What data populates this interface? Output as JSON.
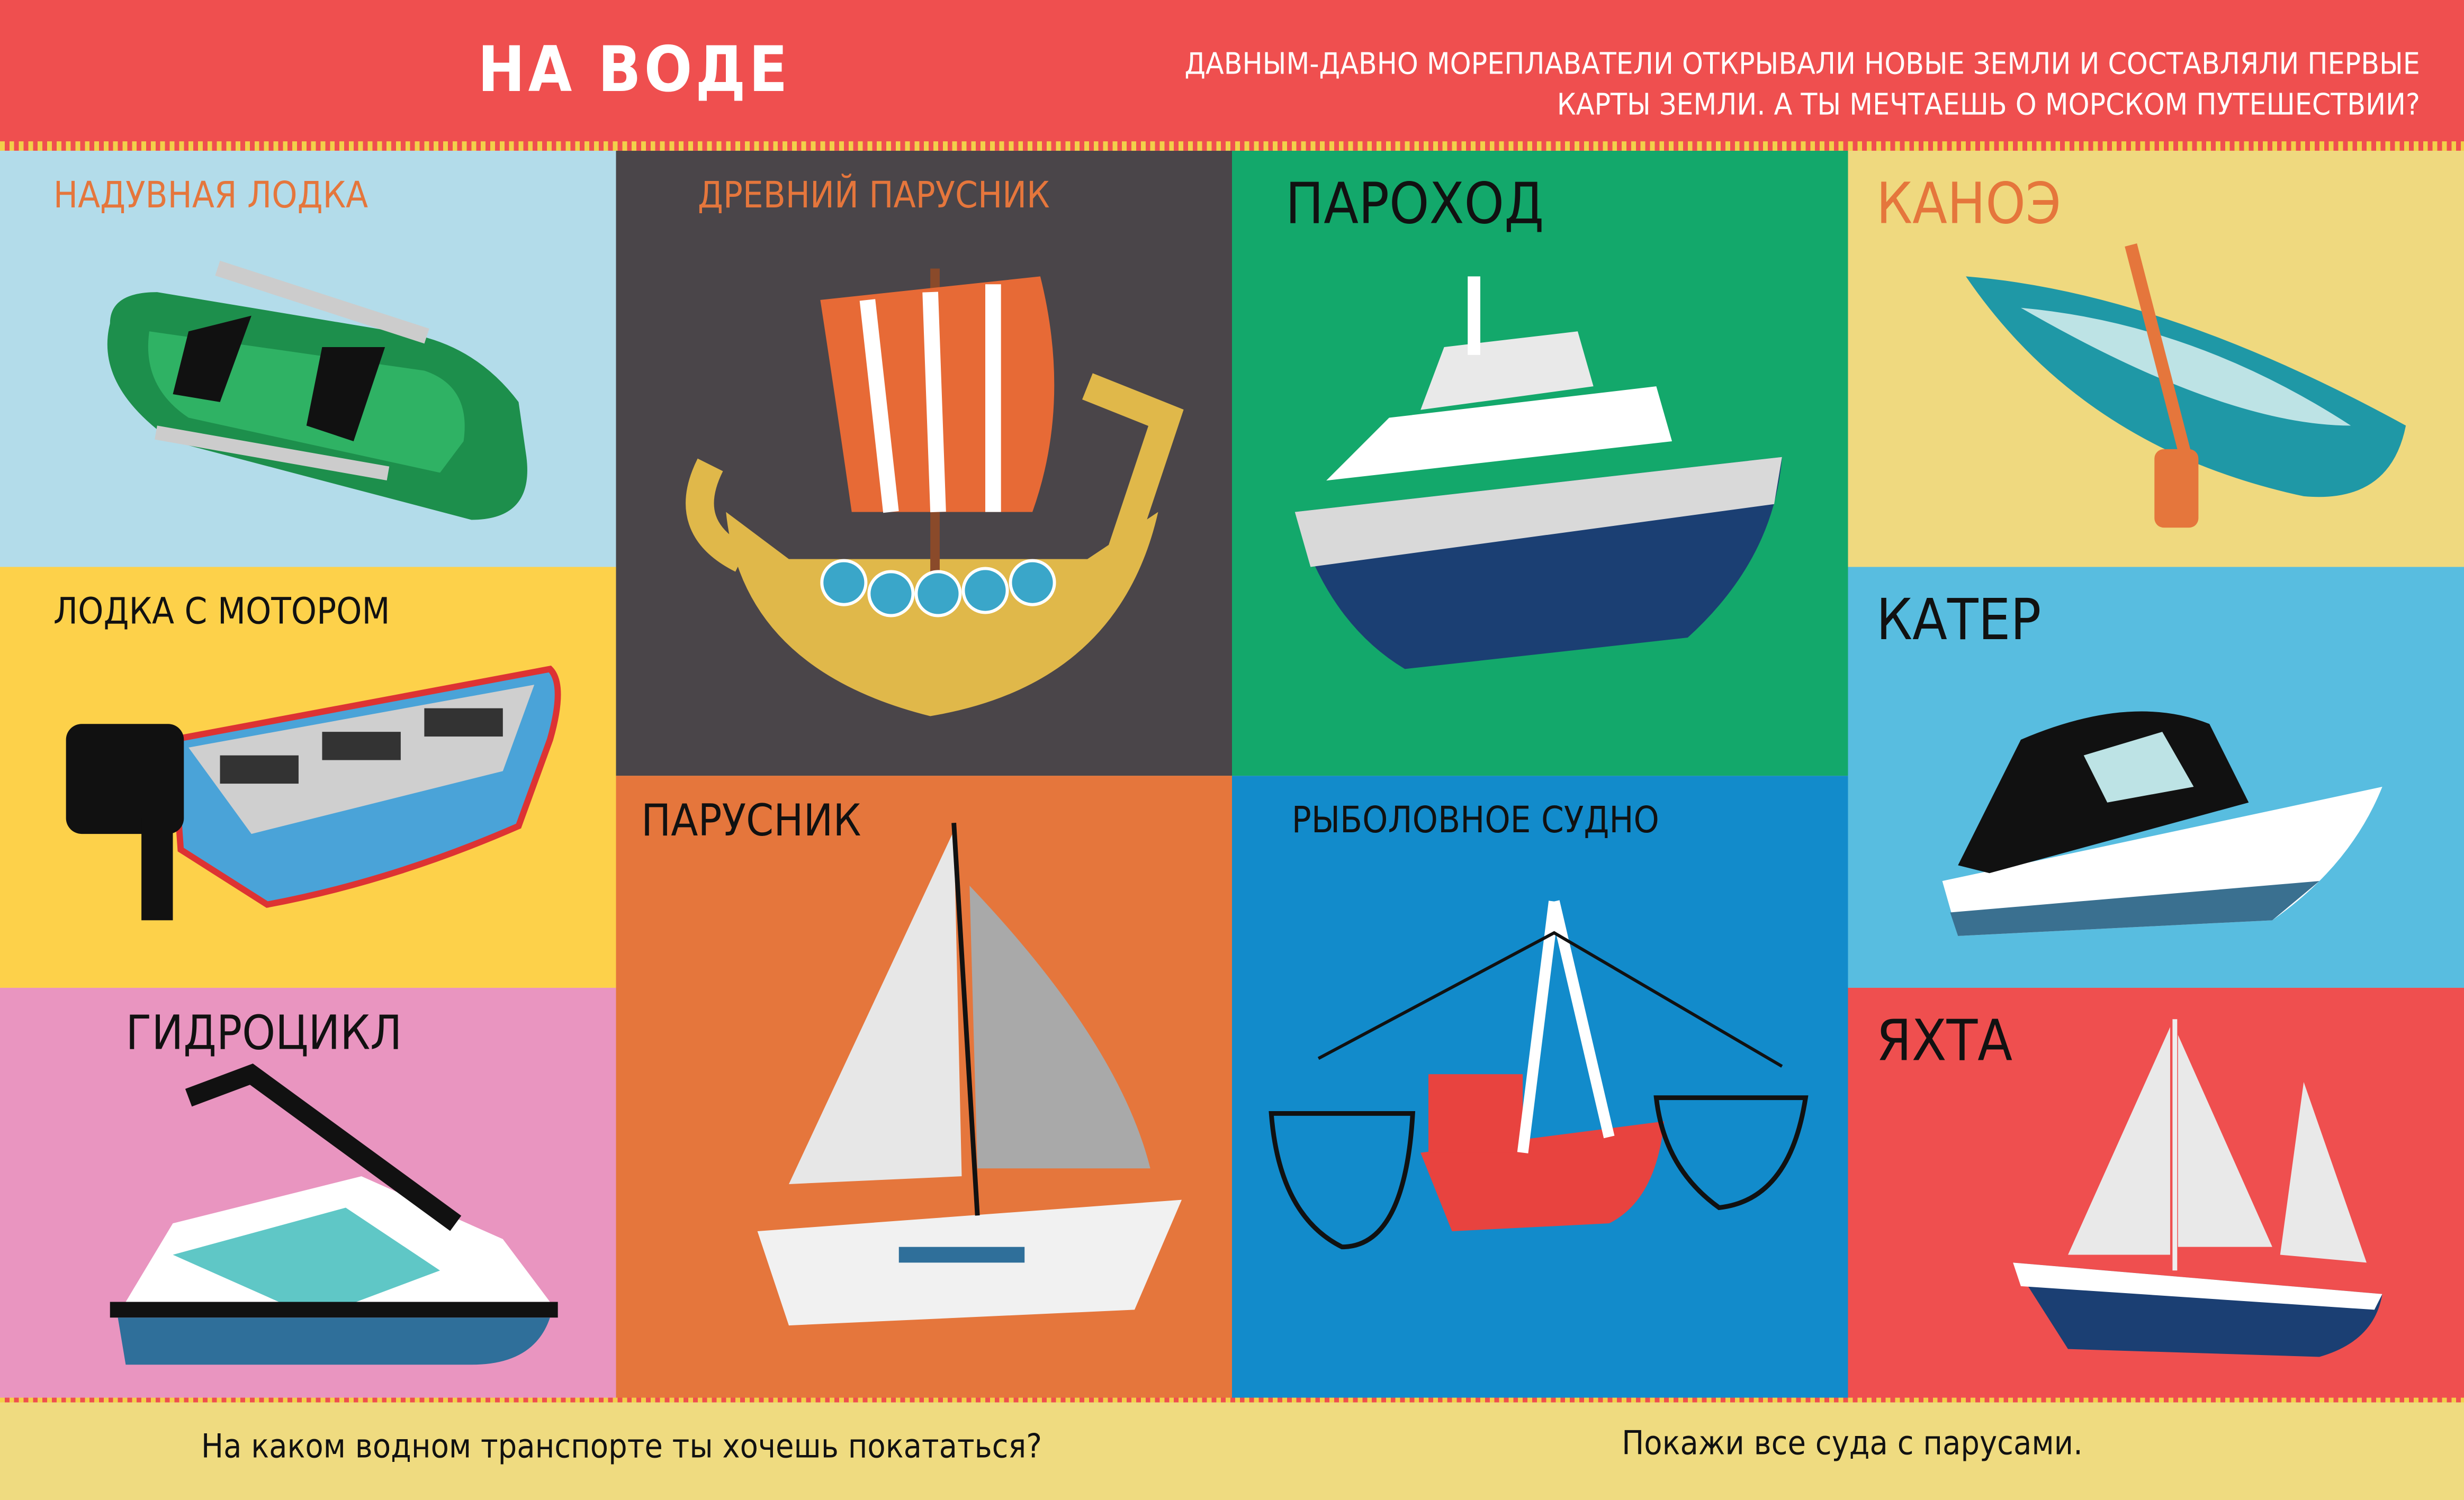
{
  "header": {
    "title": "НА ВОДЕ",
    "intro": "ДАВНЫМ-ДАВНО МОРЕПЛАВАТЕЛИ ОТКРЫВАЛИ НОВЫЕ ЗЕМЛИ И СОСТАВЛЯЛИ ПЕРВЫЕ КАРТЫ ЗЕМЛИ. А ТЫ МЕЧТАЕШЬ О МОРСКОМ ПУТЕШЕСТВИИ?",
    "color": "#ef4f4f"
  },
  "tiles": [
    {
      "label": "НАДУВНАЯ ЛОДКА",
      "bg": "#b3dcea",
      "icon": "inflatable-boat"
    },
    {
      "label": "ЛОДКА С МОТОРОМ",
      "bg": "#fdd14a",
      "icon": "motor-boat"
    },
    {
      "label": "ГИДРОЦИКЛ",
      "bg": "#e995c0",
      "icon": "jet-ski"
    },
    {
      "label": "ДРЕВНИЙ ПАРУСНИК",
      "bg": "#4a4549",
      "icon": "viking-ship"
    },
    {
      "label": "ПАРУСНИК",
      "bg": "#e5763c",
      "icon": "sailboat"
    },
    {
      "label": "ПАРОХОД",
      "bg": "#13a86b",
      "icon": "steamship"
    },
    {
      "label": "РЫБОЛОВНОЕ СУДНО",
      "bg": "#128bcb",
      "icon": "fishing-vessel"
    },
    {
      "label": "КАНОЭ",
      "bg": "#efd97f",
      "icon": "canoe"
    },
    {
      "label": "КАТЕР",
      "bg": "#58bde0",
      "icon": "motor-cutter"
    },
    {
      "label": "ЯХТА",
      "bg": "#ef4f4f",
      "icon": "yacht"
    }
  ],
  "footer": {
    "question_left": "На каком водном транспорте ты хочешь покататься?",
    "question_right": "Покажи все суда с парусами.",
    "bg": "#efdb80"
  }
}
